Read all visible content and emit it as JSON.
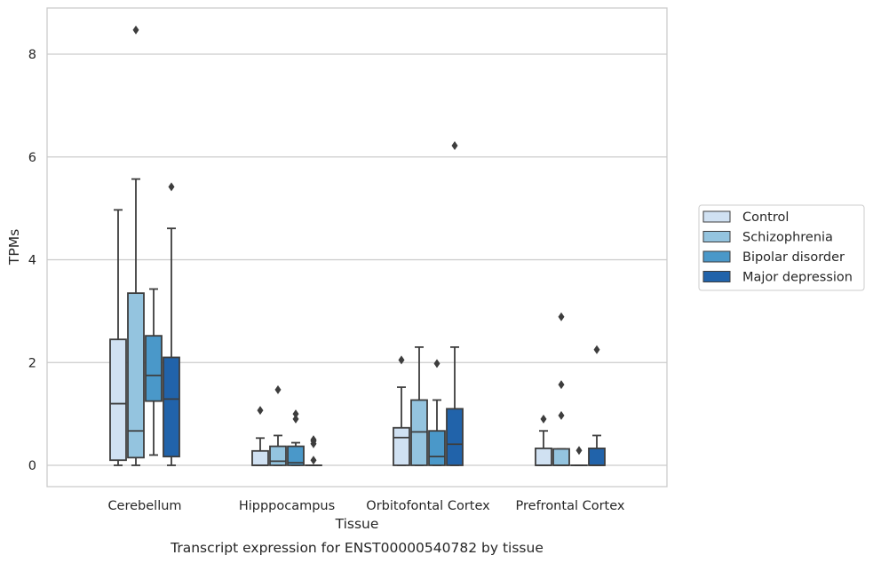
{
  "chart_data": {
    "type": "box",
    "title": "",
    "caption": "Transcript expression for ENST00000540782 by tissue",
    "xlabel": "Tissue",
    "ylabel": "TPMs",
    "ylim": [
      -0.4,
      8.9
    ],
    "yticks": [
      0,
      2,
      4,
      6,
      8
    ],
    "grid": "horizontal",
    "legend_position": "right",
    "categories": [
      "Cerebellum",
      "Hipppocampus",
      "Orbitofontal Cortex",
      "Prefrontal Cortex"
    ],
    "series": [
      {
        "name": "Control",
        "color": "#d0e1f2",
        "boxes": [
          {
            "whisker_low": 0,
            "q1": 0.1,
            "median": 1.2,
            "q3": 2.45,
            "whisker_high": 4.97,
            "outliers": []
          },
          {
            "whisker_low": 0,
            "q1": 0,
            "median": 0,
            "q3": 0.28,
            "whisker_high": 0.53,
            "outliers": [
              1.07
            ]
          },
          {
            "whisker_low": 0,
            "q1": 0,
            "median": 0.54,
            "q3": 0.73,
            "whisker_high": 1.52,
            "outliers": [
              2.05
            ]
          },
          {
            "whisker_low": 0,
            "q1": 0,
            "median": 0,
            "q3": 0.33,
            "whisker_high": 0.67,
            "outliers": [
              0.9
            ]
          }
        ]
      },
      {
        "name": "Schizophrenia",
        "color": "#94c4df",
        "boxes": [
          {
            "whisker_low": 0,
            "q1": 0.15,
            "median": 0.67,
            "q3": 3.35,
            "whisker_high": 5.57,
            "outliers": [
              8.47
            ]
          },
          {
            "whisker_low": 0,
            "q1": 0,
            "median": 0.08,
            "q3": 0.37,
            "whisker_high": 0.58,
            "outliers": [
              1.47
            ]
          },
          {
            "whisker_low": 0,
            "q1": 0,
            "median": 0.65,
            "q3": 1.27,
            "whisker_high": 2.3,
            "outliers": []
          },
          {
            "whisker_low": 0,
            "q1": 0,
            "median": 0,
            "q3": 0.32,
            "whisker_high": 0.32,
            "outliers": [
              0.97,
              1.57,
              2.89
            ]
          }
        ]
      },
      {
        "name": "Bipolar disorder",
        "color": "#4a98c9",
        "boxes": [
          {
            "whisker_low": 0.2,
            "q1": 1.25,
            "median": 1.75,
            "q3": 2.52,
            "whisker_high": 3.43,
            "outliers": []
          },
          {
            "whisker_low": 0,
            "q1": 0,
            "median": 0.05,
            "q3": 0.37,
            "whisker_high": 0.44,
            "outliers": [
              0.9,
              1.0
            ]
          },
          {
            "whisker_low": 0,
            "q1": 0,
            "median": 0.17,
            "q3": 0.67,
            "whisker_high": 1.27,
            "outliers": [
              1.98
            ]
          },
          {
            "whisker_low": 0,
            "q1": 0,
            "median": 0,
            "q3": 0,
            "whisker_high": 0,
            "outliers": [
              0.29
            ]
          }
        ]
      },
      {
        "name": "Major depression",
        "color": "#2163aa",
        "boxes": [
          {
            "whisker_low": 0,
            "q1": 0.17,
            "median": 1.29,
            "q3": 2.1,
            "whisker_high": 4.61,
            "outliers": [
              5.42
            ]
          },
          {
            "whisker_low": 0,
            "q1": 0,
            "median": 0,
            "q3": 0,
            "whisker_high": 0,
            "outliers": [
              0.1,
              0.42,
              0.47,
              0.5
            ]
          },
          {
            "whisker_low": 0,
            "q1": 0,
            "median": 0.41,
            "q3": 1.1,
            "whisker_high": 2.3,
            "outliers": [
              6.22
            ]
          },
          {
            "whisker_low": 0,
            "q1": 0,
            "median": 0,
            "q3": 0.33,
            "whisker_high": 0.58,
            "outliers": [
              2.25
            ]
          }
        ]
      }
    ]
  }
}
